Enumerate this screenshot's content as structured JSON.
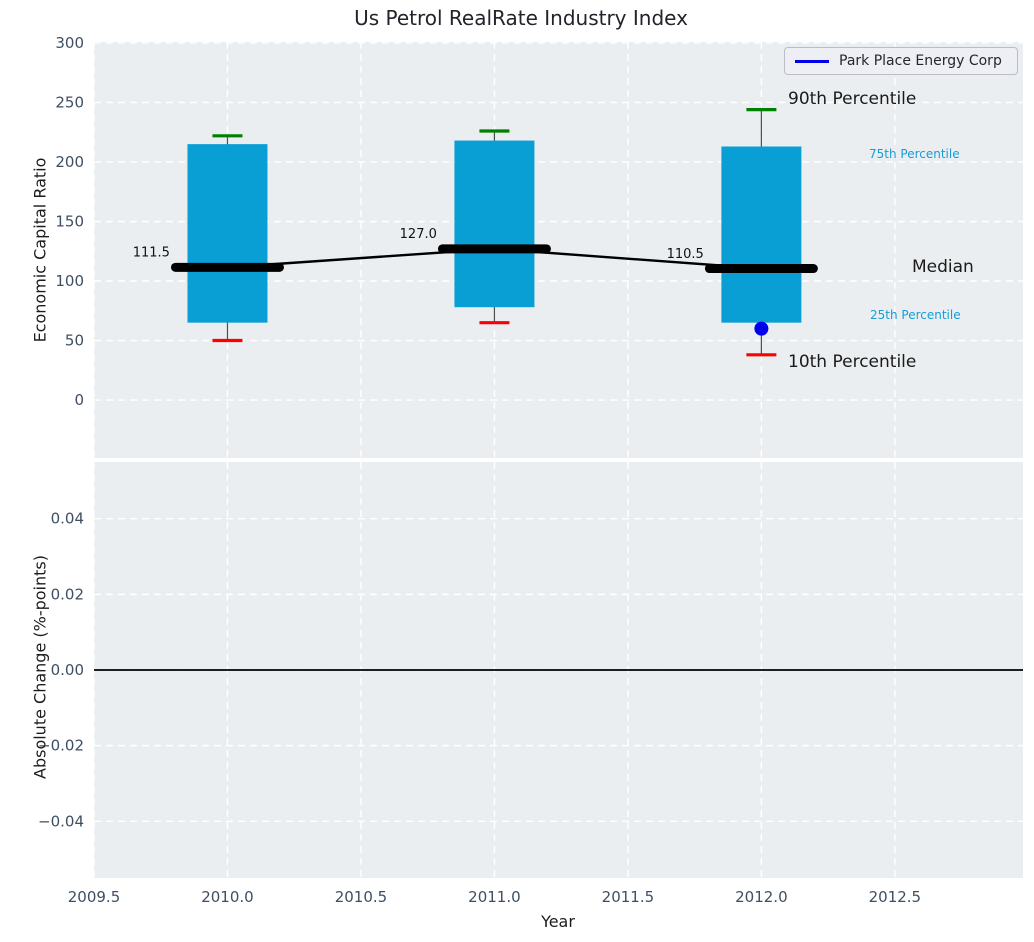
{
  "title": "Us Petrol RealRate Industry Index",
  "xlabel": "Year",
  "legend": {
    "label": "Park Place Energy Corp"
  },
  "annotations": {
    "p90": "90th Percentile",
    "p75": "75th Percentile",
    "median": "Median",
    "p25": "25th Percentile",
    "p10": "10th Percentile"
  },
  "top_axis": {
    "ylabel": "Economic Capital Ratio",
    "yticks": [
      {
        "value": 300,
        "label": "300"
      },
      {
        "value": 250,
        "label": "250"
      },
      {
        "value": 200,
        "label": "200"
      },
      {
        "value": 150,
        "label": "150"
      },
      {
        "value": 100,
        "label": "100"
      },
      {
        "value": 50,
        "label": "50"
      },
      {
        "value": 0,
        "label": "0"
      }
    ]
  },
  "bottom_axis": {
    "ylabel": "Absolute Change (%-points)",
    "yticks": [
      {
        "value": 0.04,
        "label": "0.04"
      },
      {
        "value": 0.02,
        "label": "0.02"
      },
      {
        "value": 0.0,
        "label": "0.00"
      },
      {
        "value": -0.02,
        "label": "−0.02"
      },
      {
        "value": -0.04,
        "label": "−0.04"
      }
    ]
  },
  "xticks": [
    {
      "value": 2009.5,
      "label": "2009.5"
    },
    {
      "value": 2010.0,
      "label": "2010.0"
    },
    {
      "value": 2010.5,
      "label": "2010.5"
    },
    {
      "value": 2011.0,
      "label": "2011.0"
    },
    {
      "value": 2011.5,
      "label": "2011.5"
    },
    {
      "value": 2012.0,
      "label": "2012.0"
    },
    {
      "value": 2012.5,
      "label": "2012.5"
    }
  ],
  "colors": {
    "box_fill": "#0a9fd4",
    "whisker": "#4d4d4d",
    "cap_90th": "#008000",
    "cap_10th": "#ff0000",
    "median_line": "#000000",
    "company": "#0000ee",
    "axes_bg": "#ebeef0",
    "grid": "#ffffff",
    "tick_text": "#3e4f63",
    "zero_line": "#000000",
    "annotation_text": "#111111",
    "pct_small_text": "#149dd8"
  },
  "chart_data": [
    {
      "type": "boxplot",
      "title": "Us Petrol RealRate Industry Index",
      "xlabel": "Year",
      "ylabel": "Economic Capital Ratio",
      "x": [
        2010,
        2011,
        2012
      ],
      "series": [
        {
          "name": "10th Percentile",
          "values": [
            50,
            65,
            38
          ]
        },
        {
          "name": "25th Percentile",
          "values": [
            65,
            78,
            65
          ]
        },
        {
          "name": "Median",
          "values": [
            111.5,
            127.0,
            110.5
          ]
        },
        {
          "name": "75th Percentile",
          "values": [
            215,
            218,
            213
          ]
        },
        {
          "name": "90th Percentile",
          "values": [
            222,
            226,
            244
          ]
        }
      ],
      "median_labels": [
        "111.5",
        "127.0",
        "110.5"
      ],
      "overlay_point": {
        "name": "Park Place Energy Corp",
        "x": 2012,
        "y": 60
      },
      "xlim": [
        2009.5,
        2012.98
      ],
      "ylim": [
        -48.7,
        300.8
      ],
      "grid": true,
      "legend_position": "upper right"
    },
    {
      "type": "line",
      "ylabel": "Absolute Change (%-points)",
      "xlabel": "Year",
      "x": [],
      "values": [],
      "zero_line": 0.0,
      "xlim": [
        2009.5,
        2012.98
      ],
      "ylim": [
        -0.055,
        0.055
      ],
      "grid": true
    }
  ]
}
